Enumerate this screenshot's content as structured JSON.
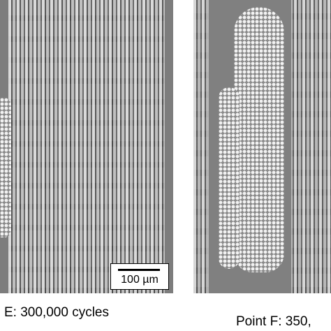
{
  "panels": [
    {
      "scale_bar": "100 µm",
      "caption": "E: 300,000 cycles"
    },
    {
      "caption": "Point F: 350,"
    }
  ]
}
